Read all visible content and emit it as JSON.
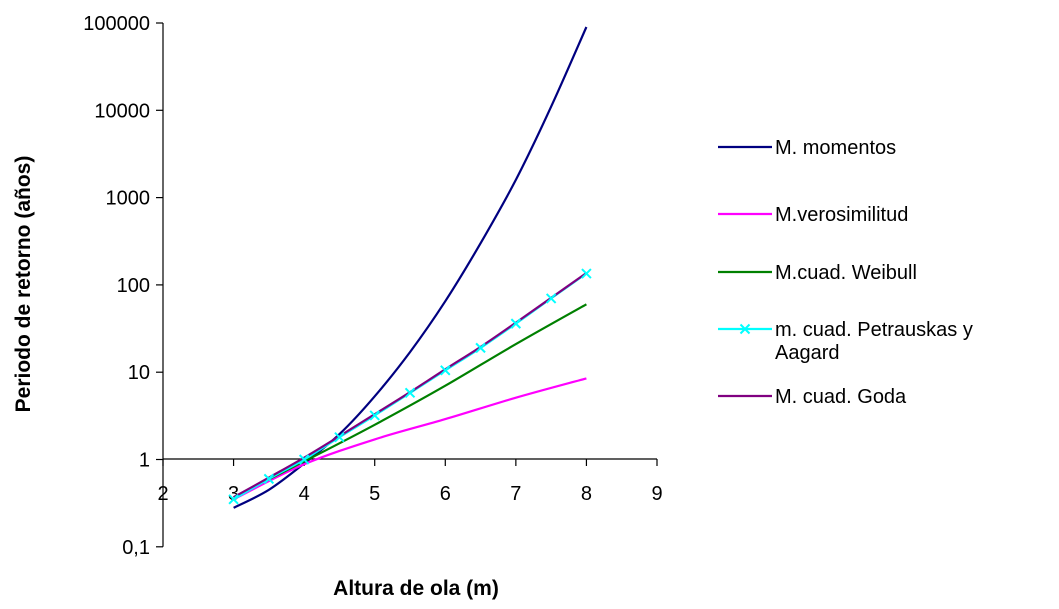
{
  "chart_data": {
    "type": "line",
    "xlabel": "Altura de ola (m)",
    "ylabel": "Periodo de retorno (años)",
    "y_scale": "log",
    "xlim": [
      2,
      9
    ],
    "ylim": [
      0.1,
      100000
    ],
    "x_ticks": [
      "2",
      "3",
      "4",
      "5",
      "6",
      "7",
      "8",
      "9"
    ],
    "y_ticks": [
      "0,1",
      "1",
      "10",
      "100",
      "1000",
      "10000",
      "100000"
    ],
    "grid": false,
    "legend_position": "right",
    "series": [
      {
        "name": "M. momentos",
        "color": "#000080",
        "marker": "none",
        "x": [
          3,
          3.5,
          4,
          4.5,
          5,
          5.5,
          6,
          6.5,
          7,
          7.5,
          8
        ],
        "y": [
          0.28,
          0.45,
          0.9,
          1.95,
          5.3,
          17,
          65,
          300,
          1600,
          11000,
          90000
        ]
      },
      {
        "name": "M.verosimilitud",
        "color": "#ff00ff",
        "marker": "none",
        "x": [
          3,
          4,
          5,
          6,
          7,
          8
        ],
        "y": [
          0.35,
          0.88,
          1.7,
          2.9,
          5.1,
          8.5
        ]
      },
      {
        "name": "M.cuad. Weibull",
        "color": "#008000",
        "marker": "none",
        "x": [
          3,
          4,
          5,
          6,
          7,
          8
        ],
        "y": [
          0.37,
          0.95,
          2.5,
          7,
          21,
          60
        ]
      },
      {
        "name": "m. cuad. Petrauskas y Aagard",
        "color": "#00ffff",
        "marker": "x",
        "x": [
          3,
          3.5,
          4,
          4.5,
          5,
          5.5,
          6,
          6.5,
          7,
          7.5,
          8
        ],
        "y": [
          0.35,
          0.6,
          1.0,
          1.8,
          3.2,
          5.8,
          10.5,
          19,
          36,
          70,
          135
        ]
      },
      {
        "name": "M. cuad. Goda",
        "color": "#800080",
        "marker": "none",
        "x": [
          3,
          3.5,
          4,
          4.5,
          5,
          5.5,
          6,
          6.5,
          7,
          7.5,
          8
        ],
        "y": [
          0.37,
          0.62,
          1.05,
          1.85,
          3.3,
          5.9,
          10.8,
          19.5,
          37,
          71,
          137
        ]
      }
    ]
  }
}
